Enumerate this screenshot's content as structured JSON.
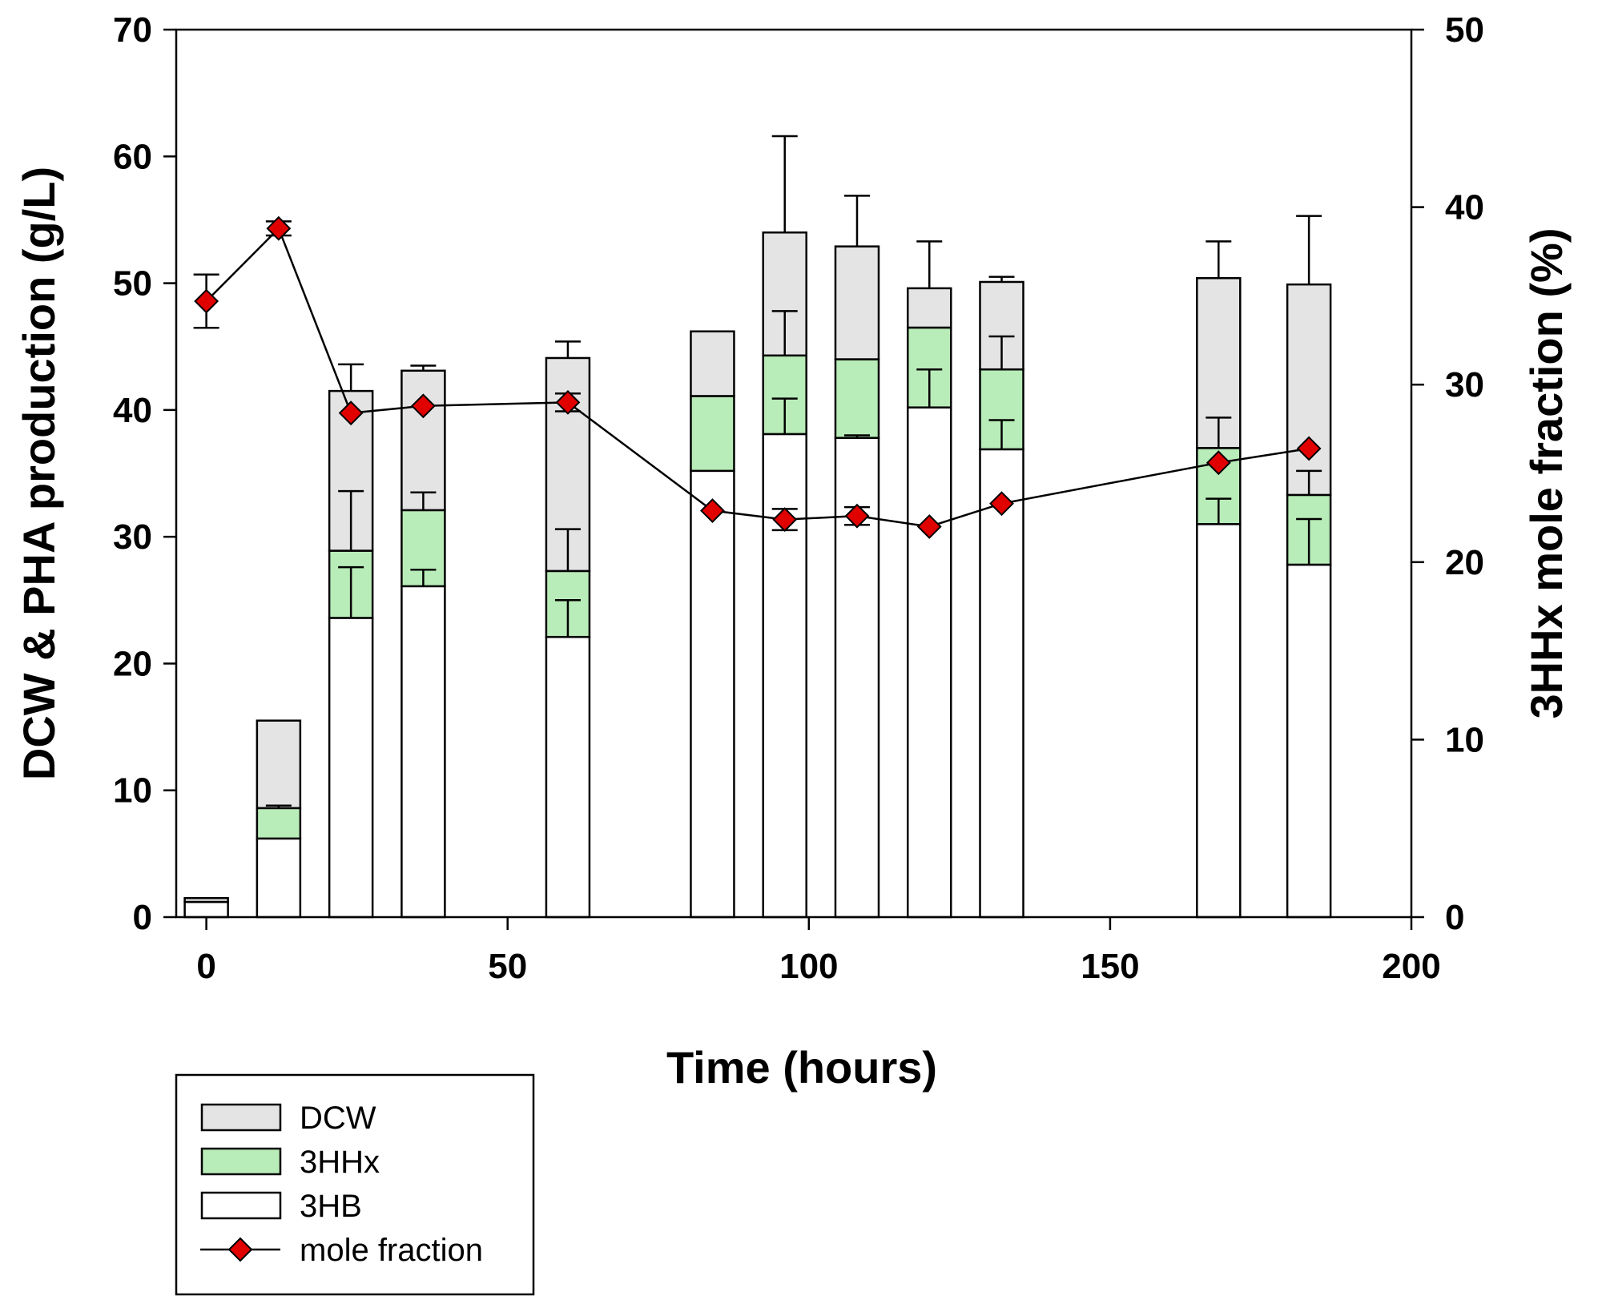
{
  "chart_data": {
    "type": "bar",
    "subtype": "stacked-bar-with-line-secondary-axis",
    "title": "",
    "xlabel": "Time (hours)",
    "ylabel": "DCW & PHA production (g/L)",
    "y2label": "3HHx mole fraction (%)",
    "xlim": [
      -5,
      200
    ],
    "ylim": [
      0,
      70
    ],
    "y2lim": [
      0,
      50
    ],
    "xticks": [
      0,
      50,
      100,
      150,
      200
    ],
    "yticks": [
      0,
      10,
      20,
      30,
      40,
      50,
      60,
      70
    ],
    "y2ticks": [
      0,
      10,
      20,
      30,
      40,
      50
    ],
    "x": [
      0,
      12,
      24,
      36,
      60,
      84,
      96,
      108,
      120,
      132,
      168,
      183
    ],
    "series": [
      {
        "name": "3HB",
        "color": "#ffffff",
        "values": [
          1.2,
          6.2,
          23.6,
          26.1,
          22.1,
          35.2,
          38.1,
          37.8,
          40.2,
          36.9,
          31.0,
          27.8
        ],
        "error": [
          0,
          0,
          4.0,
          1.3,
          2.9,
          0,
          2.8,
          0.2,
          3.0,
          2.3,
          2.0,
          3.6
        ]
      },
      {
        "name": "3HHx",
        "color": "#b8ecb8",
        "values": [
          0,
          2.4,
          5.3,
          6.0,
          5.2,
          5.9,
          6.2,
          6.2,
          6.3,
          6.3,
          6.0,
          5.5
        ],
        "error": [
          0,
          0.2,
          4.7,
          1.4,
          3.3,
          0,
          3.5,
          0,
          0,
          2.6,
          2.4,
          1.9
        ]
      },
      {
        "name": "DCW",
        "color": "#e4e4e4",
        "values": [
          0.3,
          6.9,
          12.6,
          11.0,
          16.8,
          5.1,
          9.7,
          8.9,
          3.1,
          6.9,
          13.4,
          16.6
        ],
        "error": [
          0,
          0,
          2.1,
          0.4,
          1.3,
          0,
          7.6,
          4.0,
          3.7,
          0.4,
          2.9,
          5.4
        ]
      }
    ],
    "line_series": {
      "name": "mole fraction",
      "axis": "right",
      "color": "#e00000",
      "x": [
        0,
        12,
        24,
        36,
        60,
        84,
        96,
        108,
        120,
        132,
        168,
        183
      ],
      "values": [
        34.7,
        38.8,
        28.4,
        28.8,
        29.0,
        22.9,
        22.4,
        22.6,
        22.0,
        23.3,
        25.6,
        26.4
      ],
      "error": [
        1.5,
        0.4,
        0,
        0,
        0.5,
        0,
        0.6,
        0.5,
        0,
        0,
        0,
        0
      ]
    },
    "legend": {
      "placement": "bottom-left, outside plot",
      "entries": [
        "DCW",
        "3HHx",
        "3HB",
        "mole fraction"
      ]
    }
  }
}
